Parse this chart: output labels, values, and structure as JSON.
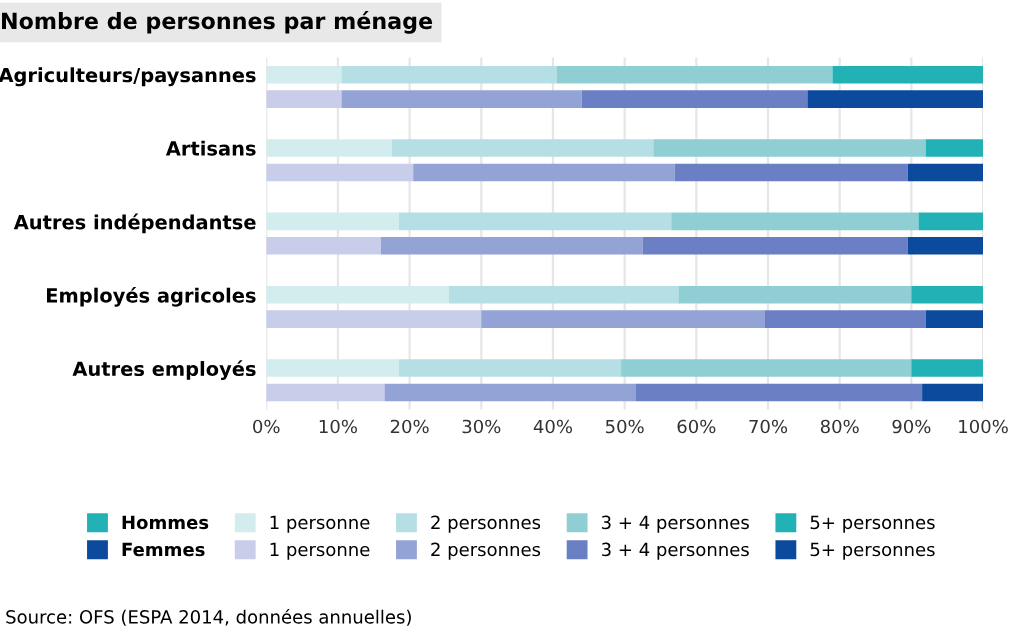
{
  "chart_data": {
    "type": "bar",
    "orientation": "horizontal",
    "stacked": true,
    "title": "Nombre de personnes par ménage",
    "categories": [
      "Agriculteurs/paysannes",
      null,
      "Artisans",
      null,
      "Autres indépendantse",
      null,
      "Employés agricoles",
      null,
      "Autres employés",
      null
    ],
    "series": [
      {
        "name": "1 personne",
        "color": "#d3ecee",
        "values": [
          10.5,
          null,
          17.5,
          null,
          18.5,
          null,
          25.5,
          null,
          18.5,
          null
        ]
      },
      {
        "name": "2 personnes",
        "color": "#b5dfe4",
        "values": [
          30,
          null,
          36.5,
          null,
          38,
          null,
          32,
          null,
          31,
          null
        ]
      },
      {
        "name": "3 + 4 personnes",
        "color": "#8fcfd4",
        "values": [
          38.5,
          null,
          38,
          null,
          34.5,
          null,
          32.5,
          null,
          40.5,
          null
        ]
      },
      {
        "name": "5+ personnes",
        "color": "#22b1b5",
        "values": [
          21,
          null,
          8,
          null,
          9,
          null,
          10,
          null,
          10,
          null
        ]
      },
      {
        "name": "1 personne",
        "color": "#c8cde9",
        "values": [
          null,
          10.5,
          null,
          20.5,
          null,
          16,
          null,
          30,
          null,
          16.5
        ]
      },
      {
        "name": "2 personnes",
        "color": "#94a3d6",
        "values": [
          null,
          33.5,
          null,
          36.5,
          null,
          36.5,
          null,
          39.5,
          null,
          35
        ]
      },
      {
        "name": "3 + 4 personnes",
        "color": "#6a7fc4",
        "values": [
          null,
          31.5,
          null,
          32.5,
          null,
          37,
          null,
          22.5,
          null,
          40
        ]
      },
      {
        "name": "5+ personnes",
        "color": "#0b4a9c",
        "values": [
          null,
          24.5,
          null,
          10.5,
          null,
          10.5,
          null,
          8,
          null,
          8.5
        ]
      }
    ],
    "xlim": [
      0,
      100
    ],
    "xticks": [
      {
        "value": 0,
        "label": "0%"
      },
      {
        "value": 10,
        "label": "10%"
      },
      {
        "value": 20,
        "label": "20%"
      },
      {
        "value": 30,
        "label": "30%"
      },
      {
        "value": 40,
        "label": "40%"
      },
      {
        "value": 50,
        "label": "50%"
      },
      {
        "value": 60,
        "label": "60%"
      },
      {
        "value": 70,
        "label": "70%"
      },
      {
        "value": 80,
        "label": "80%"
      },
      {
        "value": 90,
        "label": "90%"
      },
      {
        "value": 100,
        "label": "100%"
      }
    ],
    "grid": "x",
    "legend": "bottom",
    "annotations": [
      "Hommes",
      "Femmes",
      "Source: OFS (ESPA 2014, données annuelles)"
    ]
  }
}
